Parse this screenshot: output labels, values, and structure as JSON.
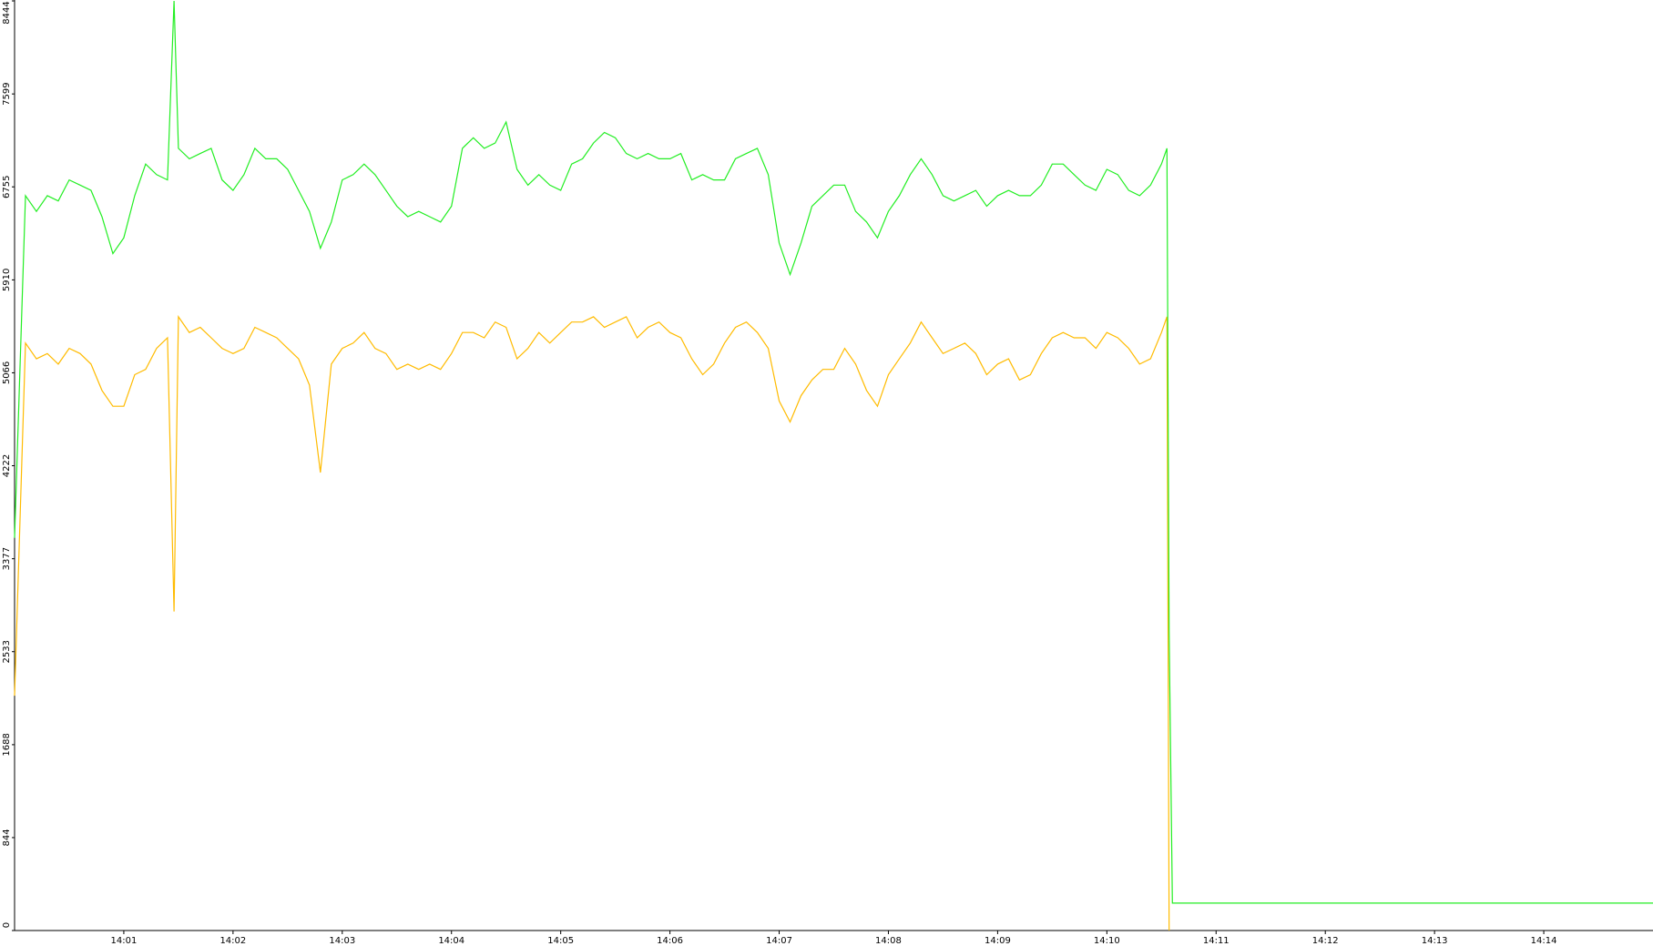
{
  "chart_data": {
    "type": "line",
    "x": [
      840,
      840.1,
      840.2,
      840.3,
      840.4,
      840.5,
      840.6,
      840.7,
      840.8,
      840.9,
      841,
      841.1,
      841.2,
      841.3,
      841.4,
      841.46,
      841.5,
      841.6,
      841.7,
      841.8,
      841.9,
      842,
      842.1,
      842.2,
      842.3,
      842.4,
      842.5,
      842.6,
      842.7,
      842.8,
      842.9,
      843,
      843.1,
      843.2,
      843.3,
      843.4,
      843.5,
      843.6,
      843.7,
      843.8,
      843.9,
      844,
      844.1,
      844.2,
      844.3,
      844.4,
      844.5,
      844.6,
      844.7,
      844.8,
      844.9,
      845,
      845.1,
      845.2,
      845.3,
      845.4,
      845.5,
      845.6,
      845.7,
      845.8,
      845.9,
      846,
      846.1,
      846.2,
      846.3,
      846.4,
      846.5,
      846.6,
      846.7,
      846.8,
      846.9,
      847,
      847.1,
      847.2,
      847.3,
      847.4,
      847.5,
      847.6,
      847.7,
      847.8,
      847.9,
      848,
      848.1,
      848.2,
      848.3,
      848.4,
      848.5,
      848.6,
      848.7,
      848.8,
      848.9,
      849,
      849.1,
      849.2,
      849.3,
      849.4,
      849.5,
      849.6,
      849.7,
      849.8,
      849.9,
      850,
      850.1,
      850.2,
      850.3,
      850.4,
      850.5,
      850.55,
      850.57,
      850.6,
      855
    ],
    "series": [
      {
        "color": "#22ee22",
        "values": [
          3567,
          6675,
          6532,
          6675,
          6627,
          6818,
          6771,
          6723,
          6484,
          6149,
          6292,
          6675,
          6962,
          6866,
          6818,
          8444,
          7105,
          7010,
          7058,
          7105,
          6818,
          6723,
          6866,
          7105,
          7010,
          7010,
          6914,
          6723,
          6532,
          6197,
          6436,
          6818,
          6866,
          6962,
          6866,
          6723,
          6579,
          6484,
          6532,
          6484,
          6436,
          6579,
          7105,
          7201,
          7105,
          7153,
          7344,
          6914,
          6771,
          6866,
          6771,
          6723,
          6962,
          7010,
          7153,
          7249,
          7201,
          7058,
          7010,
          7058,
          7010,
          7010,
          7058,
          6818,
          6866,
          6818,
          6818,
          7010,
          7058,
          7105,
          6866,
          6245,
          5958,
          6245,
          6579,
          6675,
          6771,
          6771,
          6532,
          6436,
          6292,
          6532,
          6675,
          6866,
          7010,
          6866,
          6675,
          6627,
          6675,
          6723,
          6579,
          6675,
          6723,
          6675,
          6675,
          6771,
          6962,
          6962,
          6866,
          6771,
          6723,
          6914,
          6866,
          6723,
          6675,
          6771,
          6962,
          7105,
          2725,
          249,
          249
        ]
      },
      {
        "color": "#ffbb00",
        "values": [
          2133,
          5336,
          5193,
          5241,
          5145,
          5288,
          5241,
          5145,
          4906,
          4762,
          4762,
          5049,
          5097,
          5288,
          5384,
          2898,
          5575,
          5432,
          5479,
          5384,
          5288,
          5241,
          5288,
          5479,
          5432,
          5384,
          5288,
          5193,
          4954,
          4160,
          5145,
          5288,
          5336,
          5432,
          5288,
          5241,
          5097,
          5145,
          5097,
          5145,
          5097,
          5241,
          5432,
          5432,
          5384,
          5527,
          5479,
          5193,
          5288,
          5432,
          5336,
          5432,
          5527,
          5527,
          5575,
          5479,
          5527,
          5575,
          5384,
          5479,
          5527,
          5432,
          5384,
          5193,
          5049,
          5145,
          5336,
          5479,
          5527,
          5432,
          5288,
          4810,
          4619,
          4858,
          5001,
          5097,
          5097,
          5288,
          5145,
          4906,
          4762,
          5049,
          5193,
          5336,
          5527,
          5384,
          5241,
          5288,
          5336,
          5241,
          5049,
          5145,
          5193,
          5001,
          5049,
          5241,
          5384,
          5432,
          5384,
          5384,
          5288,
          5432,
          5384,
          5288,
          5145,
          5193,
          5432,
          5575,
          0,
          null,
          null
        ]
      }
    ],
    "xlim": [
      840,
      855
    ],
    "xticks": [
      {
        "value": 841,
        "label": "14:01"
      },
      {
        "value": 842,
        "label": "14:02"
      },
      {
        "value": 843,
        "label": "14:03"
      },
      {
        "value": 844,
        "label": "14:04"
      },
      {
        "value": 845,
        "label": "14:05"
      },
      {
        "value": 846,
        "label": "14:06"
      },
      {
        "value": 847,
        "label": "14:07"
      },
      {
        "value": 848,
        "label": "14:08"
      },
      {
        "value": 849,
        "label": "14:09"
      },
      {
        "value": 850,
        "label": "14:10"
      },
      {
        "value": 851,
        "label": "14:11"
      },
      {
        "value": 852,
        "label": "14:12"
      },
      {
        "value": 853,
        "label": "14:13"
      },
      {
        "value": 854,
        "label": "14:14"
      }
    ],
    "ylim": [
      0,
      8444
    ],
    "yticks": [
      0,
      844,
      1688,
      2533,
      3377,
      4222,
      5066,
      5910,
      6755,
      7599,
      8444
    ]
  }
}
